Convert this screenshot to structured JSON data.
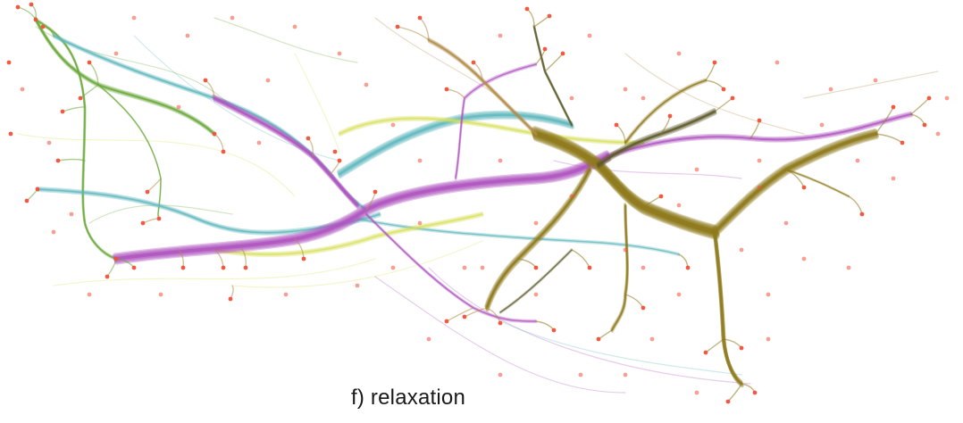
{
  "figure": {
    "caption": "f) relaxation",
    "colors": {
      "background": "#ffffff",
      "node": "#f0513a",
      "bundle_green": "#6aa83a",
      "bundle_teal": "#5fb7bd",
      "bundle_yellow": "#d8e05a",
      "bundle_magenta": "#b056c0",
      "bundle_olive": "#8f7a1e",
      "bundle_tan": "#b38c4a",
      "bundle_dark": "#5c5a2a"
    }
  }
}
